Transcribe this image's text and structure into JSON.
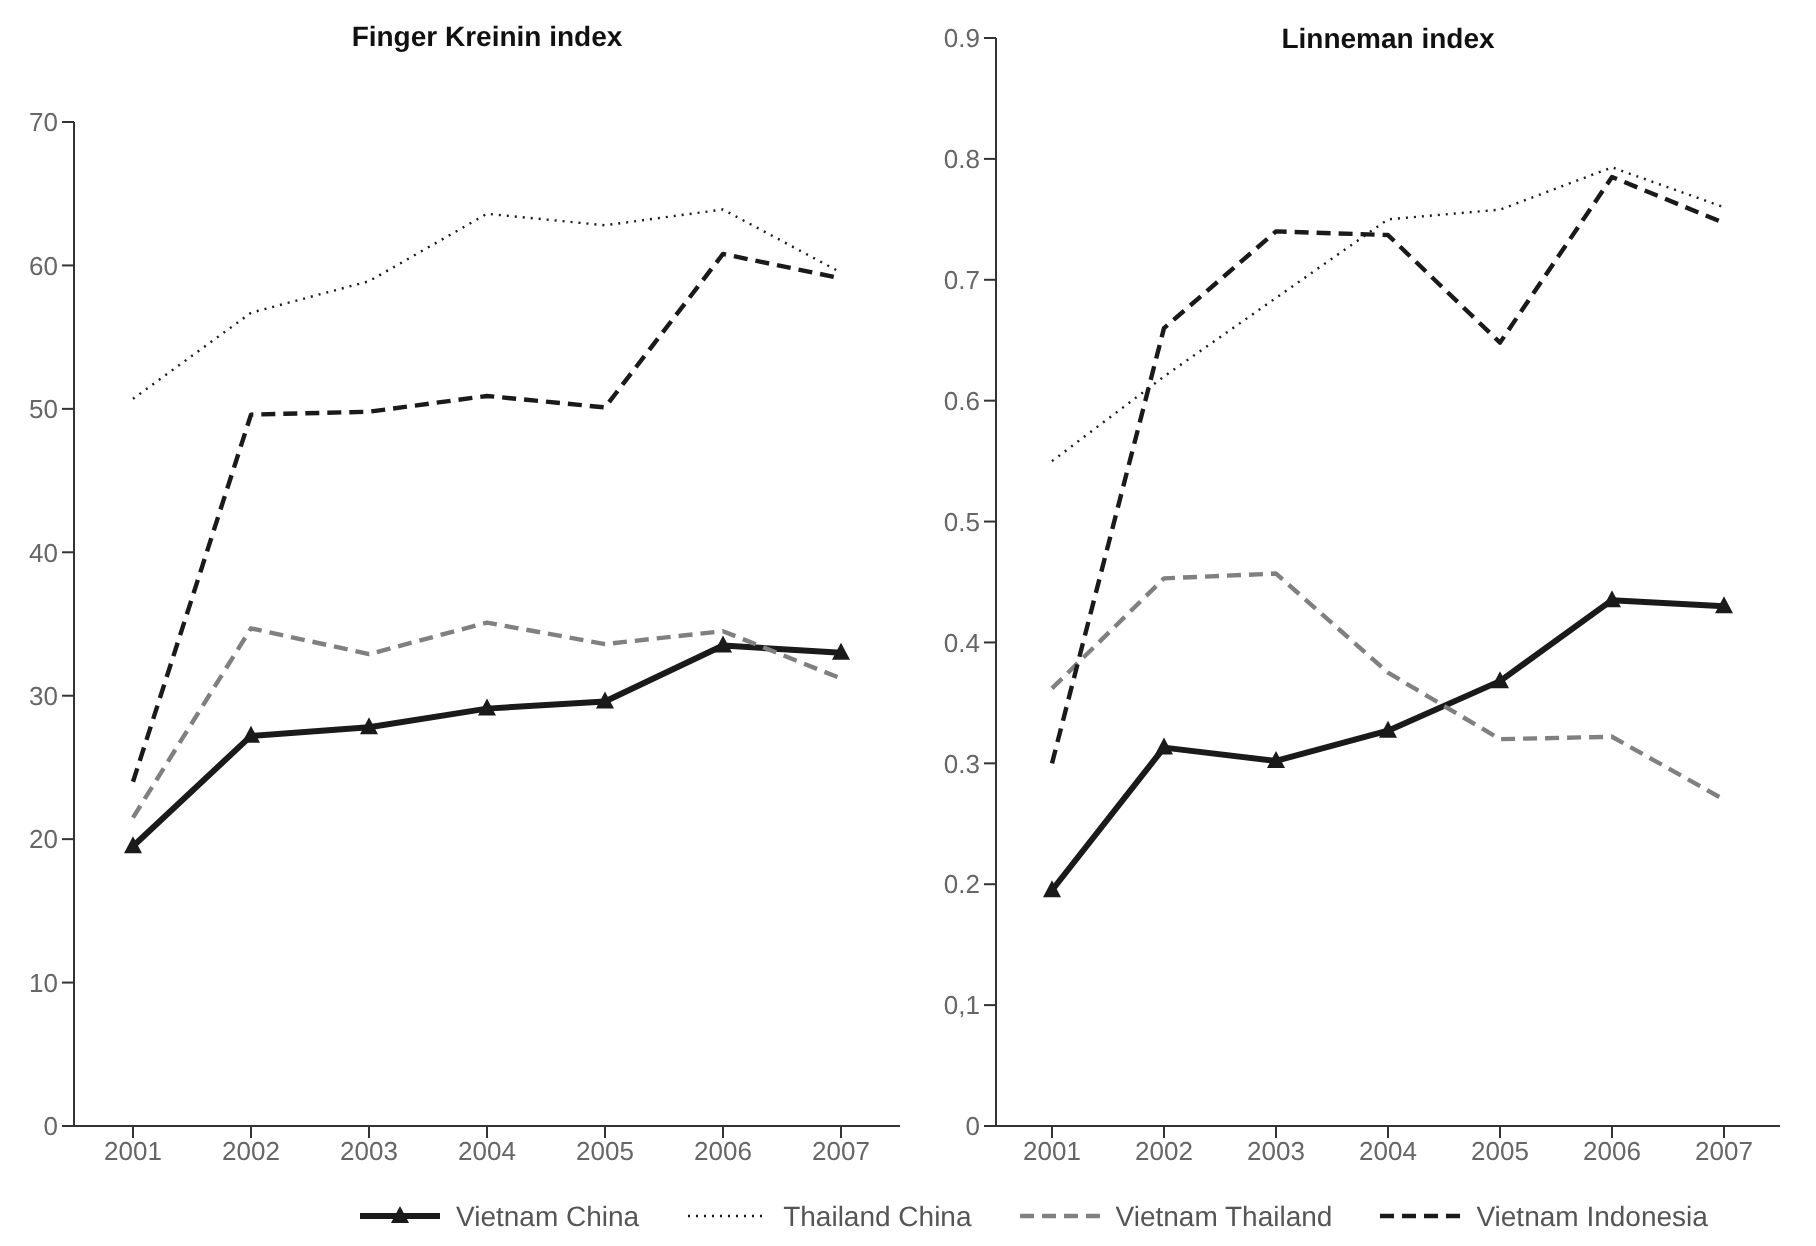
{
  "chart_data": [
    {
      "type": "line",
      "title": "Finger Kreinin index",
      "categories": [
        "2001",
        "2002",
        "2003",
        "2004",
        "2005",
        "2006",
        "2007"
      ],
      "ylim": [
        0,
        70
      ],
      "yticks": [
        0,
        10,
        20,
        30,
        40,
        50,
        60,
        70
      ],
      "grid": false,
      "legend": "bottom",
      "series": [
        {
          "name": "Vietnam China",
          "color": "#1a1a1a",
          "line_style": "solid",
          "marker": "triangle",
          "values": [
            19.5,
            27.2,
            27.8,
            29.1,
            29.6,
            33.5,
            33.0
          ]
        },
        {
          "name": "Thailand China",
          "color": "#1a1a1a",
          "line_style": "dotted",
          "marker": "none",
          "values": [
            50.7,
            56.7,
            58.9,
            63.6,
            62.8,
            63.9,
            59.5
          ]
        },
        {
          "name": "Vietnam Thailand",
          "color": "#808080",
          "line_style": "dashed",
          "marker": "none",
          "values": [
            21.5,
            34.7,
            32.9,
            35.1,
            33.6,
            34.5,
            31.2
          ]
        },
        {
          "name": "Vietnam Indonesia",
          "color": "#1a1a1a",
          "line_style": "dashed",
          "marker": "none",
          "values": [
            24.0,
            49.6,
            49.8,
            50.9,
            50.1,
            60.8,
            59.1
          ]
        }
      ]
    },
    {
      "type": "line",
      "title": "Linneman index",
      "categories": [
        "2001",
        "2002",
        "2003",
        "2004",
        "2005",
        "2006",
        "2007"
      ],
      "ylim": [
        0,
        0.9
      ],
      "yticks": [
        0,
        {
          "value": 0.1,
          "label": "0,1"
        },
        0.2,
        0.3,
        0.4,
        0.5,
        0.6,
        0.7,
        0.8,
        0.9
      ],
      "grid": false,
      "series": [
        {
          "name": "Vietnam China",
          "color": "#1a1a1a",
          "line_style": "solid",
          "marker": "triangle",
          "values": [
            0.195,
            0.313,
            0.302,
            0.327,
            0.368,
            0.435,
            0.43
          ]
        },
        {
          "name": "Thailand China",
          "color": "#1a1a1a",
          "line_style": "dotted",
          "marker": "none",
          "values": [
            0.55,
            0.62,
            0.685,
            0.75,
            0.758,
            0.793,
            0.76
          ]
        },
        {
          "name": "Vietnam Thailand",
          "color": "#808080",
          "line_style": "dashed",
          "marker": "none",
          "values": [
            0.362,
            0.453,
            0.457,
            0.375,
            0.32,
            0.322,
            0.27
          ]
        },
        {
          "name": "Vietnam Indonesia",
          "color": "#1a1a1a",
          "line_style": "dashed",
          "marker": "none",
          "values": [
            0.3,
            0.66,
            0.74,
            0.737,
            0.648,
            0.785,
            0.747
          ]
        }
      ]
    }
  ]
}
